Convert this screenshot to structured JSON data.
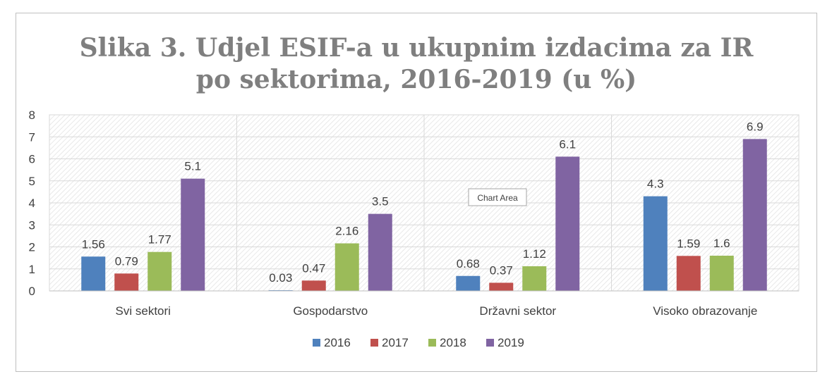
{
  "chart_data": {
    "type": "bar",
    "title_lines": [
      "Slika 3. Udjel ESIF-a u ukupnim izdacima za IR",
      "po sektorima, 2016-2019 (u %)"
    ],
    "categories": [
      "Svi sektori",
      "Gospodarstvo",
      "Državni sektor",
      "Visoko obrazovanje"
    ],
    "series": [
      {
        "name": "2016",
        "color": "#4f81bd",
        "values": [
          1.56,
          0.03,
          0.68,
          4.3
        ]
      },
      {
        "name": "2017",
        "color": "#c0504d",
        "values": [
          0.79,
          0.47,
          0.37,
          1.59
        ]
      },
      {
        "name": "2018",
        "color": "#9bbb59",
        "values": [
          1.77,
          2.16,
          1.12,
          1.6
        ]
      },
      {
        "name": "2019",
        "color": "#8064a2",
        "values": [
          5.1,
          3.5,
          6.1,
          6.9
        ]
      }
    ],
    "ylim": [
      0,
      8
    ],
    "yticks": [
      "0",
      "1",
      "2",
      "3",
      "4",
      "5",
      "6",
      "7",
      "8"
    ],
    "grid": true,
    "plot_fill": "hatched",
    "legend_position": "bottom"
  },
  "tooltip": {
    "label": "Chart Area"
  }
}
